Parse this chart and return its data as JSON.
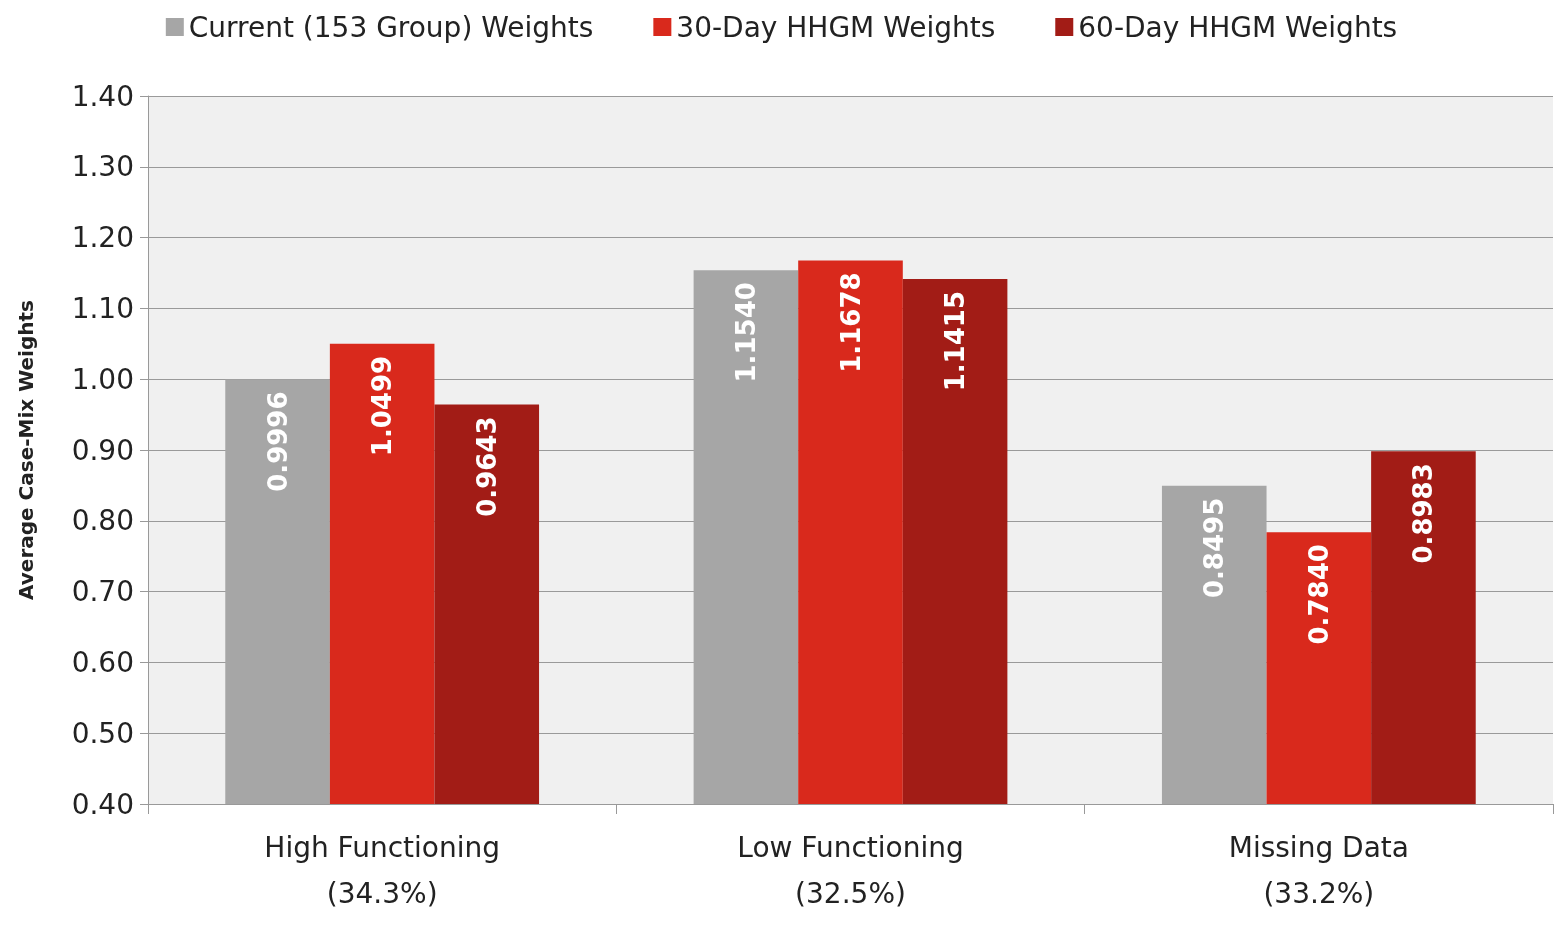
{
  "chart_data": {
    "type": "bar",
    "ylabel": "Average Case-Mix Weights",
    "categories": [
      "High Functioning\n(34.3%)",
      "Low Functioning\n(32.5%)",
      "Missing Data\n(33.2%)"
    ],
    "series": [
      {
        "name": "Current (153 Group) Weights",
        "color": "#a6a6a6",
        "values": [
          0.9996,
          1.154,
          0.8495
        ],
        "value_labels": [
          "0.9996",
          "1.1540",
          "0.8495"
        ]
      },
      {
        "name": "30-Day HHGM Weights",
        "color": "#d9291c",
        "values": [
          1.0499,
          1.1678,
          0.784
        ],
        "value_labels": [
          "1.0499",
          "1.1678",
          "0.7840"
        ]
      },
      {
        "name": "60-Day HHGM Weights",
        "color": "#a21c16",
        "values": [
          0.9643,
          1.1415,
          0.8983
        ],
        "value_labels": [
          "0.9643",
          "1.1415",
          "0.8983"
        ]
      }
    ],
    "ylim": [
      0.4,
      1.4
    ],
    "yticks": [
      {
        "value": 0.4,
        "label": "0.40"
      },
      {
        "value": 0.5,
        "label": "0.50"
      },
      {
        "value": 0.6,
        "label": "0.60"
      },
      {
        "value": 0.7,
        "label": "0.70"
      },
      {
        "value": 0.8,
        "label": "0.80"
      },
      {
        "value": 0.9,
        "label": "0.90"
      },
      {
        "value": 1.0,
        "label": "1.00"
      },
      {
        "value": 1.1,
        "label": "1.10"
      },
      {
        "value": 1.2,
        "label": "1.20"
      },
      {
        "value": 1.3,
        "label": "1.30"
      },
      {
        "value": 1.4,
        "label": "1.40"
      }
    ],
    "grid": "y",
    "legend": "top"
  }
}
